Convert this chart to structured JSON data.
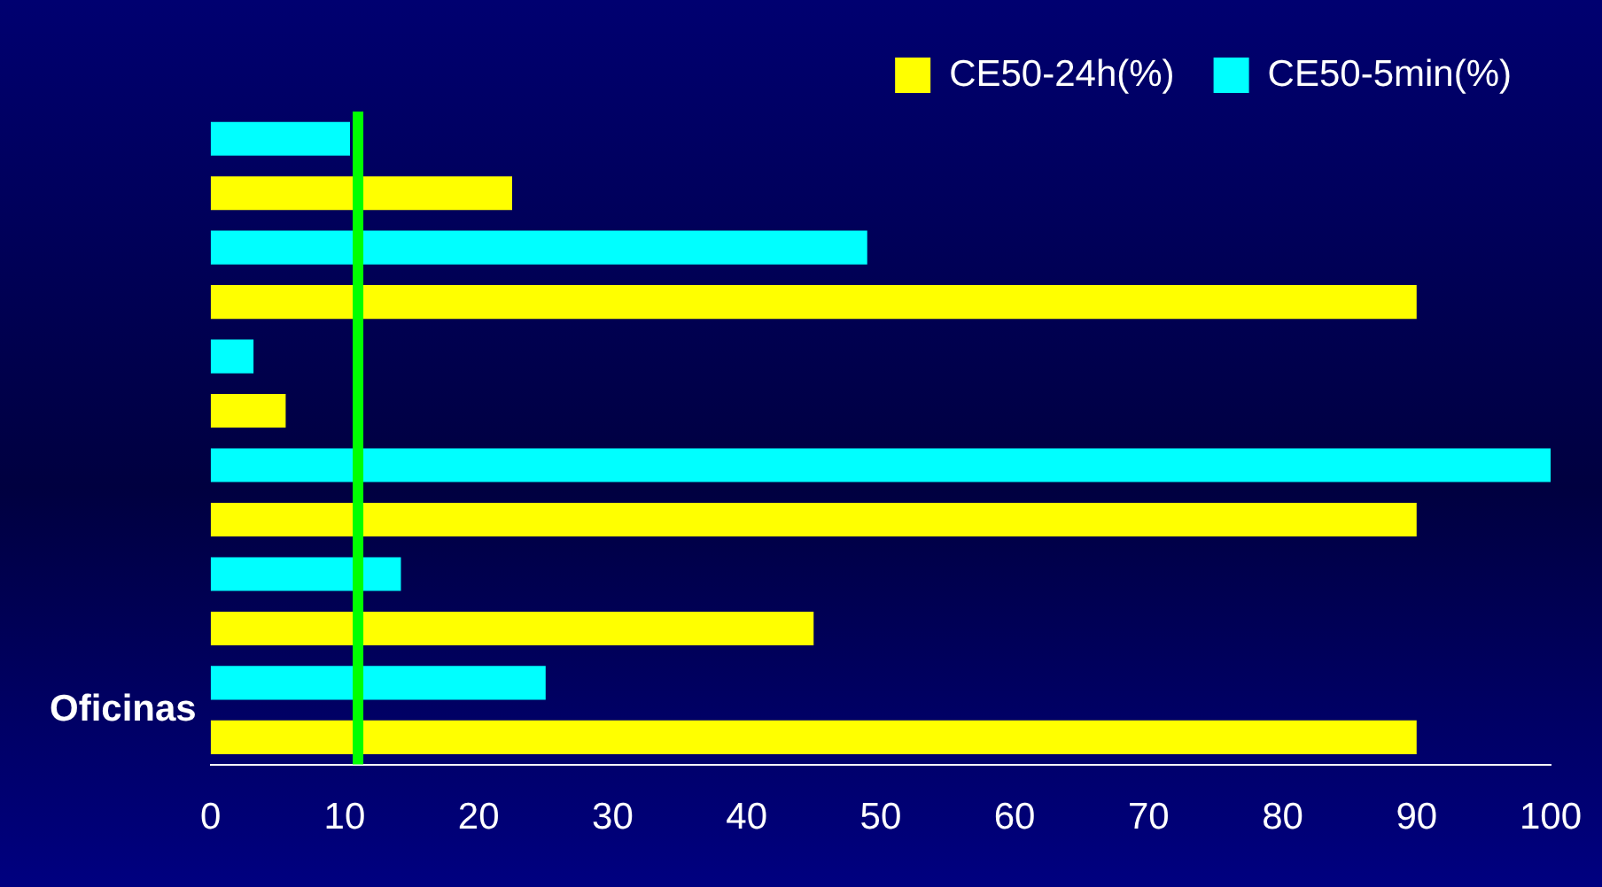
{
  "chart_data": {
    "type": "bar",
    "orientation": "horizontal",
    "categories": [
      null,
      null,
      null,
      null,
      null,
      "Oficinas"
    ],
    "series": [
      {
        "name": "CE50-24h(%)",
        "color": "#ffff00",
        "values": [
          22.5,
          90,
          5.6,
          90,
          45,
          90
        ]
      },
      {
        "name": "CE50-5min(%)",
        "color": "#00ffff",
        "values": [
          10.4,
          49,
          3.2,
          100,
          14.2,
          25
        ]
      }
    ],
    "xlim": [
      0,
      100
    ],
    "xticks": [
      0,
      10,
      20,
      30,
      40,
      50,
      60,
      70,
      80,
      90,
      100
    ],
    "grid": false,
    "legend": "top right",
    "ref_lines": [
      {
        "axis": "x",
        "value": 11,
        "color": "#00ff00"
      }
    ]
  }
}
